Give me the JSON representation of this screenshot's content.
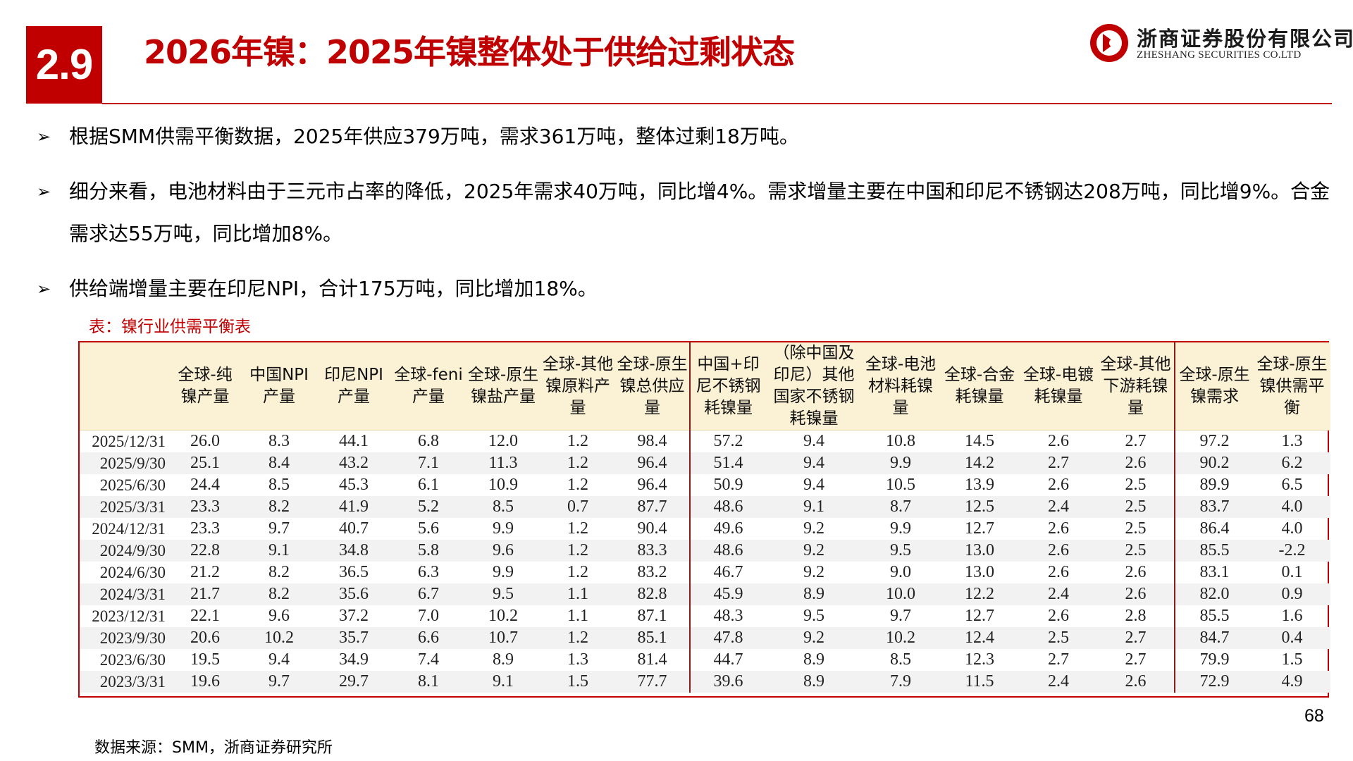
{
  "header": {
    "section_number": "2.9",
    "title": "2026年镍：2025年镍整体处于供给过剩状态",
    "logo_cn": "浙商证券股份有限公司",
    "logo_en": "ZHESHANG SECURITIES CO.LTD",
    "brand_color": "#c00000"
  },
  "bullets": [
    "根据SMM供需平衡数据，2025年供应379万吨，需求361万吨，整体过剩18万吨。",
    "细分来看，电池材料由于三元市占率的降低，2025年需求40万吨，同比增4%。需求增量主要在中国和印尼不锈钢达208万吨，同比增9%。合金需求达55万吨，同比增加8%。",
    "供给端增量主要在印尼NPI，合计175万吨，同比增加18%。"
  ],
  "bullet_marker": "➢",
  "table": {
    "caption": "表：镍行业供需平衡表",
    "columns": [
      "",
      "全球-纯镍产量",
      "中国NPI产量",
      "印尼NPI产量",
      "全球-feni产量",
      "全球-原生镍盐产量",
      "全球-其他镍原料产量",
      "全球-原生镍总供应量",
      "中国+印尼不锈钢耗镍量",
      "（除中国及印尼）其他国家不锈钢耗镍量",
      "全球-电池材料耗镍量",
      "全球-合金耗镍量",
      "全球-电镀耗镍量",
      "全球-其他下游耗镍量",
      "全球-原生镍需求",
      "全球-原生镍供需平衡"
    ],
    "rows": [
      [
        "2025/12/31",
        "26.0",
        "8.3",
        "44.1",
        "6.8",
        "12.0",
        "1.2",
        "98.4",
        "57.2",
        "9.4",
        "10.8",
        "14.5",
        "2.6",
        "2.7",
        "97.2",
        "1.3"
      ],
      [
        "2025/9/30",
        "25.1",
        "8.4",
        "43.2",
        "7.1",
        "11.3",
        "1.2",
        "96.4",
        "51.4",
        "9.4",
        "9.9",
        "14.2",
        "2.7",
        "2.6",
        "90.2",
        "6.2"
      ],
      [
        "2025/6/30",
        "24.4",
        "8.5",
        "45.3",
        "6.1",
        "10.9",
        "1.2",
        "96.4",
        "50.9",
        "9.4",
        "10.5",
        "13.9",
        "2.6",
        "2.5",
        "89.9",
        "6.5"
      ],
      [
        "2025/3/31",
        "23.3",
        "8.2",
        "41.9",
        "5.2",
        "8.5",
        "0.7",
        "87.7",
        "48.6",
        "9.1",
        "8.7",
        "12.5",
        "2.4",
        "2.5",
        "83.7",
        "4.0"
      ],
      [
        "2024/12/31",
        "23.3",
        "9.7",
        "40.7",
        "5.6",
        "9.9",
        "1.2",
        "90.4",
        "49.6",
        "9.2",
        "9.9",
        "12.7",
        "2.6",
        "2.5",
        "86.4",
        "4.0"
      ],
      [
        "2024/9/30",
        "22.8",
        "9.1",
        "34.8",
        "5.8",
        "9.6",
        "1.2",
        "83.3",
        "48.6",
        "9.2",
        "9.5",
        "13.0",
        "2.6",
        "2.5",
        "85.5",
        "-2.2"
      ],
      [
        "2024/6/30",
        "21.2",
        "8.2",
        "36.5",
        "6.3",
        "9.9",
        "1.2",
        "83.2",
        "46.7",
        "9.2",
        "9.0",
        "13.0",
        "2.6",
        "2.6",
        "83.1",
        "0.1"
      ],
      [
        "2024/3/31",
        "21.7",
        "8.2",
        "35.6",
        "6.7",
        "9.5",
        "1.1",
        "82.8",
        "45.9",
        "8.9",
        "10.0",
        "12.2",
        "2.4",
        "2.6",
        "82.0",
        "0.9"
      ],
      [
        "2023/12/31",
        "22.1",
        "9.6",
        "37.2",
        "7.0",
        "10.2",
        "1.1",
        "87.1",
        "48.3",
        "9.5",
        "9.7",
        "12.7",
        "2.6",
        "2.8",
        "85.5",
        "1.6"
      ],
      [
        "2023/9/30",
        "20.6",
        "10.2",
        "35.7",
        "6.6",
        "10.7",
        "1.2",
        "85.1",
        "47.8",
        "9.2",
        "10.2",
        "12.4",
        "2.5",
        "2.7",
        "84.7",
        "0.4"
      ],
      [
        "2023/6/30",
        "19.5",
        "9.4",
        "34.9",
        "7.4",
        "8.9",
        "1.3",
        "81.4",
        "44.7",
        "8.9",
        "8.5",
        "12.3",
        "2.7",
        "2.7",
        "79.9",
        "1.5"
      ],
      [
        "2023/3/31",
        "19.6",
        "9.7",
        "29.7",
        "8.1",
        "9.1",
        "1.5",
        "77.7",
        "39.6",
        "8.9",
        "7.9",
        "11.5",
        "2.4",
        "2.6",
        "72.9",
        "4.9"
      ]
    ]
  },
  "footer": {
    "page_number": "68",
    "source": "数据来源：SMM，浙商证券研究所"
  }
}
